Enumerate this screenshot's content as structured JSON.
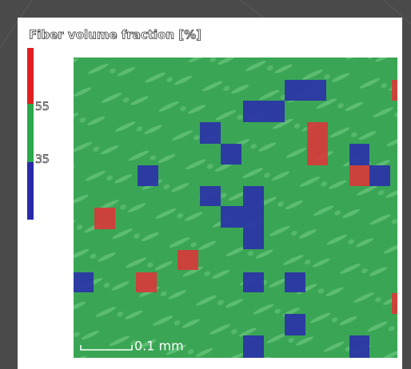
{
  "title": "Fiber volume fraction [%]",
  "legend": {
    "labels": [
      "55",
      "35"
    ]
  },
  "scale_bar": "0.1 mm"
}
